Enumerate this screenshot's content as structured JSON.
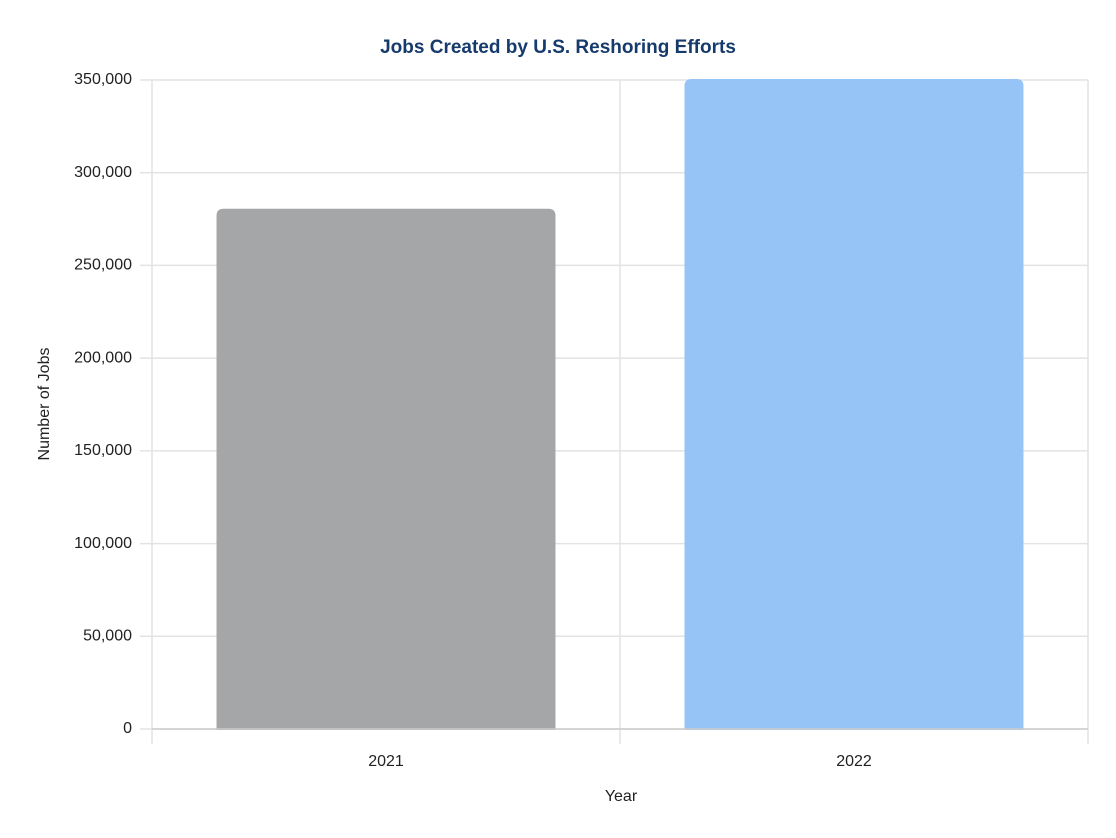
{
  "chart_data": {
    "type": "bar",
    "title": "Jobs Created by U.S. Reshoring Efforts",
    "x_label": "Year",
    "y_label": "Number of Jobs",
    "categories": [
      "2021",
      "2022"
    ],
    "values": [
      280000,
      350000
    ],
    "colors": [
      "#aaabad",
      "#9ccaff"
    ],
    "ylim": [
      0,
      350000
    ],
    "yticks": [
      0,
      {
        "value": 50000,
        "label": "50,000"
      },
      {
        "value": 100000,
        "label": "100,000"
      },
      {
        "value": 150000,
        "label": "150,000"
      },
      {
        "value": 200000,
        "label": "200,000"
      },
      {
        "value": 250000,
        "label": "250,000"
      },
      {
        "value": 300000,
        "label": "300,000"
      },
      {
        "value": 350000,
        "label": "350,000"
      }
    ],
    "grid": true
  }
}
